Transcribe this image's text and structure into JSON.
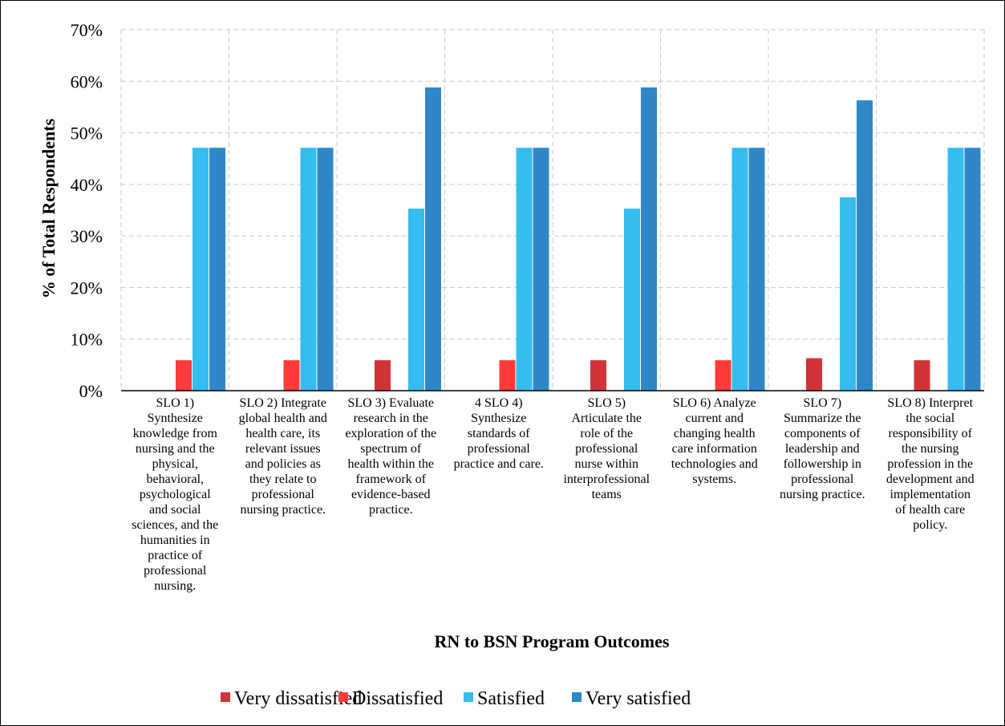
{
  "chart_data": {
    "type": "bar",
    "xlabel": "RN to BSN Program Outcomes",
    "ylabel": "% of Total Respondents",
    "ylim": [
      0,
      70
    ],
    "yticks": [
      "0%",
      "10%",
      "20%",
      "30%",
      "40%",
      "50%",
      "60%",
      "70%"
    ],
    "grid": true,
    "legend_position": "bottom",
    "categories": [
      "SLO 1) Synthesize knowledge from nursing and the physical, behavioral, psychological and social sciences, and the humanities in practice of professional nursing.",
      "SLO 2) Integrate global health and health care, its relevant issues and policies as they relate to professional nursing practice.",
      "SLO 3) Evaluate research in the exploration of the spectrum of health within the framework of evidence-based practice.",
      "4 SLO 4) Synthesize standards of professional practice and care.",
      "SLO 5) Articulate the role of the professional nurse within interprofessional teams",
      "SLO 6) Analyze current and changing health care information technologies and systems.",
      "SLO 7) Summarize the components of leadership and followership in professional nursing practice.",
      "SLO 8) Interpret the social responsibility of the nursing profession in the development and implementation of health care policy."
    ],
    "category_lines": [
      [
        "SLO 1)",
        "Synthesize",
        "knowledge from",
        "nursing and the",
        "physical,",
        "behavioral,",
        "psychological",
        "and social",
        "sciences, and the",
        "humanities in",
        "practice of",
        "professional",
        "nursing."
      ],
      [
        "SLO 2) Integrate",
        "global health and",
        "health care, its",
        "relevant issues",
        "and policies as",
        "they relate to",
        "professional",
        "nursing practice."
      ],
      [
        "SLO 3) Evaluate",
        "research in the",
        "exploration of the",
        "spectrum of",
        "health within the",
        "framework of",
        "evidence-based",
        "practice."
      ],
      [
        "4 SLO 4)",
        "Synthesize",
        "standards of",
        "professional",
        "practice and care."
      ],
      [
        "SLO 5)",
        "Articulate the",
        "role of the",
        "professional",
        "nurse within",
        "interprofessional",
        "teams"
      ],
      [
        "SLO 6) Analyze",
        "current and",
        "changing health",
        "care information",
        "technologies and",
        "systems."
      ],
      [
        "SLO 7)",
        "Summarize the",
        "components of",
        "leadership and",
        "followership in",
        "professional",
        "nursing practice."
      ],
      [
        "SLO 8) Interpret",
        "the social",
        "responsibility of",
        "the nursing",
        "profession in the",
        "development and",
        "implementation",
        "of health care",
        "policy."
      ]
    ],
    "series": [
      {
        "name": "Very dissatisfied",
        "color": "#d13438",
        "values": [
          0,
          0,
          5.9,
          0,
          5.9,
          0,
          6.3,
          5.9
        ]
      },
      {
        "name": "Dissatisfied",
        "color": "#ff3b3b",
        "values": [
          5.9,
          5.9,
          0,
          5.9,
          0,
          5.9,
          0,
          0
        ]
      },
      {
        "name": "Satisfied",
        "color": "#35bdf0",
        "values": [
          47.1,
          47.1,
          35.3,
          47.1,
          35.3,
          47.1,
          37.5,
          47.1
        ]
      },
      {
        "name": "Very satisfied",
        "color": "#2e88c8",
        "values": [
          47.1,
          47.1,
          58.8,
          47.1,
          58.8,
          47.1,
          56.3,
          47.1
        ]
      }
    ]
  }
}
